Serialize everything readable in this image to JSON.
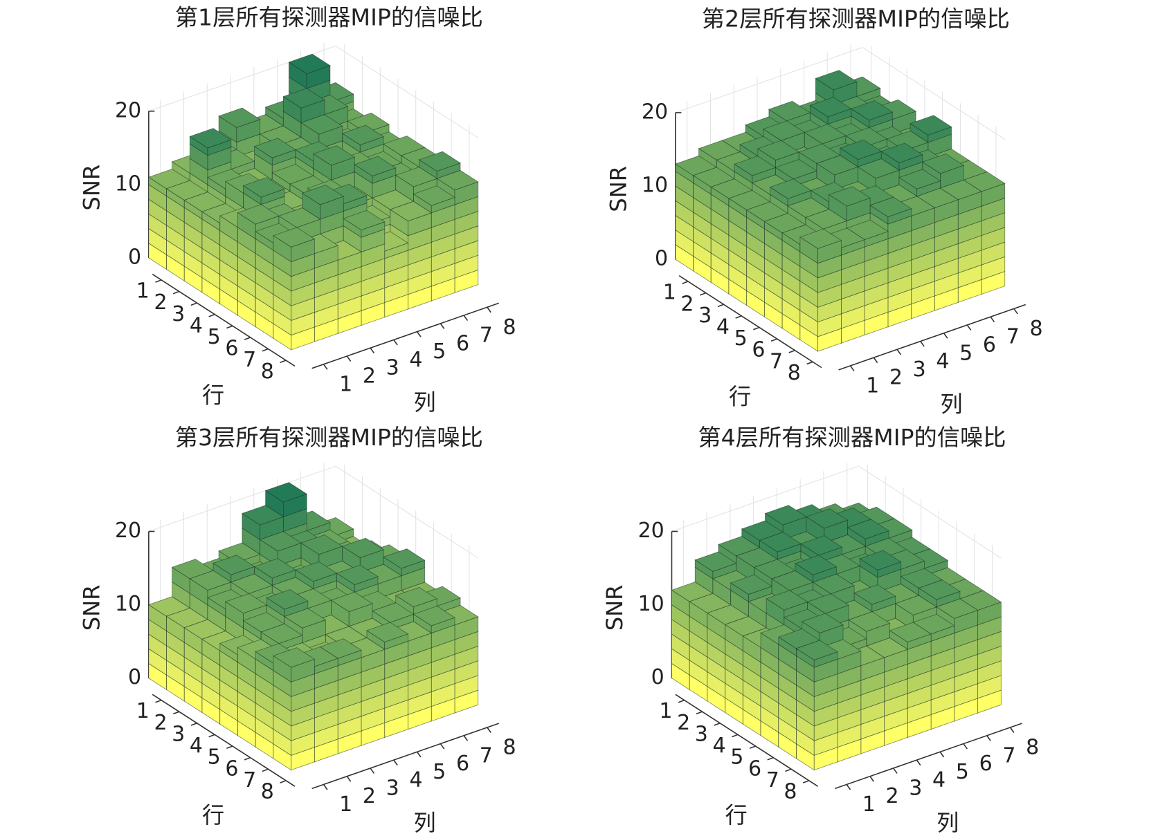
{
  "chart_data": [
    {
      "type": "bar3d",
      "title": "第1层所有探测器MIP的信噪比",
      "xlabel": "列",
      "ylabel": "行",
      "zlabel": "SNR",
      "rows": [
        1,
        2,
        3,
        4,
        5,
        6,
        7,
        8
      ],
      "columns": [
        1,
        2,
        3,
        4,
        5,
        6,
        7,
        8
      ],
      "values": [
        [
          11,
          12,
          13,
          16,
          14,
          15,
          20,
          15
        ],
        [
          11,
          17,
          13,
          12,
          14,
          18,
          16,
          13
        ],
        [
          11,
          13,
          12,
          15,
          14,
          16,
          13,
          14
        ],
        [
          11,
          14,
          12,
          13,
          15,
          12,
          15,
          13
        ],
        [
          12,
          15,
          12,
          13,
          16,
          14,
          13,
          14
        ],
        [
          14,
          13,
          11,
          14,
          12,
          15,
          13,
          14
        ],
        [
          13,
          14,
          16,
          15,
          11,
          12,
          14,
          15
        ],
        [
          14,
          12,
          10,
          13,
          9,
          12,
          13,
          14
        ]
      ],
      "zlim": [
        0,
        21
      ],
      "zticks": [
        0,
        10,
        20
      ],
      "colormap": [
        "#ffff66",
        "#0a6b55"
      ],
      "grid": true
    },
    {
      "type": "bar3d",
      "title": "第2层所有探测器MIP的信噪比",
      "xlabel": "列",
      "ylabel": "行",
      "zlabel": "SNR",
      "rows": [
        1,
        2,
        3,
        4,
        5,
        6,
        7,
        8
      ],
      "columns": [
        1,
        2,
        3,
        4,
        5,
        6,
        7,
        8
      ],
      "values": [
        [
          13,
          14,
          14,
          15,
          16,
          15,
          18,
          16
        ],
        [
          13,
          14,
          15,
          16,
          15,
          17,
          16,
          15
        ],
        [
          13,
          15,
          16,
          14,
          16,
          15,
          17,
          16
        ],
        [
          13,
          14,
          15,
          16,
          15,
          16,
          15,
          14
        ],
        [
          13,
          15,
          14,
          16,
          17,
          15,
          16,
          17
        ],
        [
          13,
          14,
          15,
          14,
          16,
          17,
          15,
          14
        ],
        [
          13,
          14,
          16,
          15,
          14,
          15,
          16,
          14
        ],
        [
          14,
          13,
          13,
          15,
          14,
          14,
          14,
          14
        ]
      ],
      "zlim": [
        0,
        21
      ],
      "zticks": [
        0,
        10,
        20
      ],
      "colormap": [
        "#ffff66",
        "#0a6b55"
      ],
      "grid": true
    },
    {
      "type": "bar3d",
      "title": "第3层所有探测器MIP的信噪比",
      "xlabel": "列",
      "ylabel": "行",
      "zlabel": "SNR",
      "rows": [
        1,
        2,
        3,
        4,
        5,
        6,
        7,
        8
      ],
      "columns": [
        1,
        2,
        3,
        4,
        5,
        6,
        7,
        8
      ],
      "values": [
        [
          10,
          14,
          13,
          14,
          18,
          20,
          15,
          13
        ],
        [
          10,
          14,
          15,
          13,
          16,
          15,
          14,
          12
        ],
        [
          10,
          13,
          14,
          15,
          13,
          16,
          14,
          13
        ],
        [
          10,
          14,
          13,
          14,
          15,
          14,
          16,
          14
        ],
        [
          11,
          13,
          15,
          14,
          13,
          15,
          14,
          15
        ],
        [
          12,
          13,
          14,
          12,
          14,
          13,
          12,
          12
        ],
        [
          13,
          12,
          11,
          12,
          12,
          13,
          14,
          13
        ],
        [
          14,
          13,
          13,
          12,
          13,
          12,
          13,
          12
        ]
      ],
      "zlim": [
        0,
        21
      ],
      "zticks": [
        0,
        10,
        20
      ],
      "colormap": [
        "#ffff66",
        "#0a6b55"
      ],
      "grid": true
    },
    {
      "type": "bar3d",
      "title": "第4层所有探测器MIP的信噪比",
      "xlabel": "列",
      "ylabel": "行",
      "zlabel": "SNR",
      "rows": [
        1,
        2,
        3,
        4,
        5,
        6,
        7,
        8
      ],
      "columns": [
        1,
        2,
        3,
        4,
        5,
        6,
        7,
        8
      ],
      "values": [
        [
          12,
          15,
          16,
          17,
          18,
          17,
          16,
          15
        ],
        [
          12,
          14,
          16,
          17,
          16,
          18,
          17,
          16
        ],
        [
          12,
          15,
          16,
          15,
          17,
          16,
          17,
          16
        ],
        [
          12,
          14,
          16,
          17,
          16,
          15,
          16,
          15
        ],
        [
          12,
          16,
          15,
          16,
          14,
          17,
          16,
          15
        ],
        [
          14,
          15,
          16,
          14,
          15,
          14,
          15,
          14
        ],
        [
          15,
          16,
          13,
          14,
          12,
          14,
          15,
          14
        ],
        [
          15,
          14,
          12,
          12,
          13,
          13,
          14,
          14
        ]
      ],
      "zlim": [
        0,
        21
      ],
      "zticks": [
        0,
        10,
        20
      ],
      "colormap": [
        "#ffff66",
        "#0a6b55"
      ],
      "grid": true
    }
  ]
}
